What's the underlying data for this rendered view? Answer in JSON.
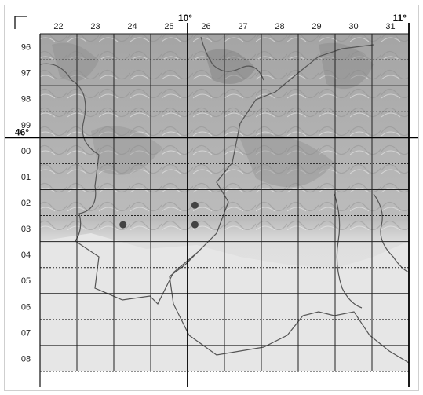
{
  "map": {
    "columns": [
      "22",
      "23",
      "24",
      "25",
      "26",
      "27",
      "28",
      "29",
      "30",
      "31"
    ],
    "rows": [
      "96",
      "97",
      "98",
      "99",
      "00",
      "01",
      "02",
      "03",
      "04",
      "05",
      "06",
      "07",
      "08"
    ],
    "longitude_labels": [
      {
        "text": "10°",
        "between_columns": [
          "25",
          "26"
        ]
      },
      {
        "text": "11°",
        "after_column": "31"
      }
    ],
    "latitude_labels": [
      {
        "text": "46°",
        "between_rows": [
          "99",
          "00"
        ]
      }
    ],
    "markers": [
      {
        "col": "26",
        "row": "02",
        "offset_x": 0.2,
        "offset_y": 0.6,
        "label": ""
      },
      {
        "col": "24",
        "row": "03",
        "offset_x": 0.25,
        "offset_y": 0.35,
        "label": ""
      },
      {
        "col": "26",
        "row": "03",
        "offset_x": 0.2,
        "offset_y": 0.35,
        "label": ""
      }
    ],
    "colors": {
      "relief_dark": "#9a9a9a",
      "relief_light": "#dcdcdc",
      "lowland": "#e8e8e8",
      "grid_major": "#111111",
      "grid_minor": "#333333",
      "border": "#555555",
      "marker": "#444444"
    }
  }
}
